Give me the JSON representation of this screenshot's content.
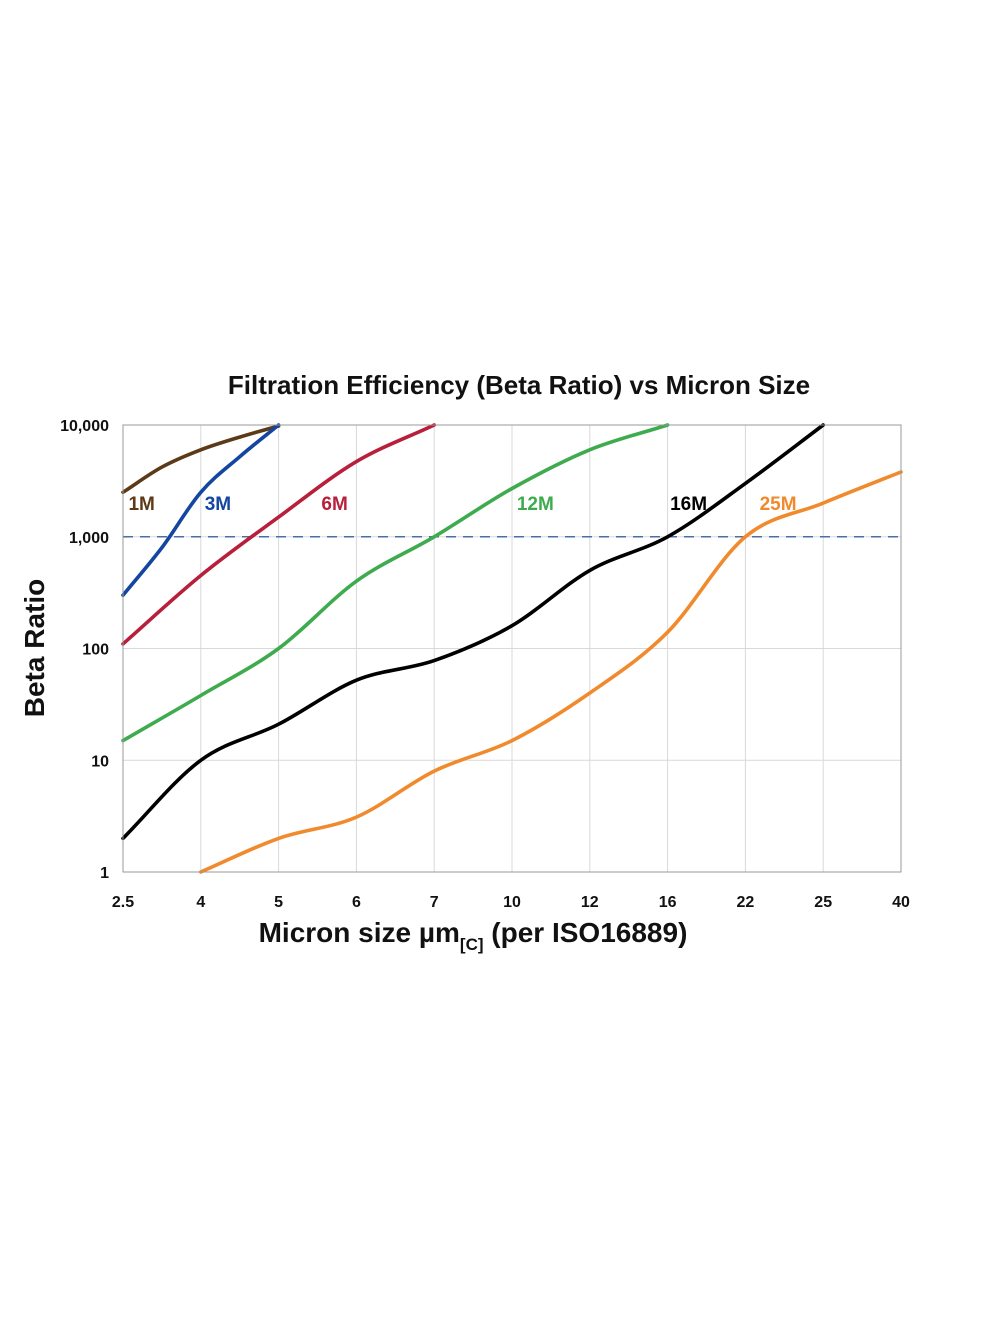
{
  "chart_data": {
    "type": "line",
    "title": "Filtration Efficiency (Beta Ratio) vs Micron Size",
    "xlabel": {
      "main": "Micron size µm",
      "subscript": "[C]",
      "suffix": " (per ISO16889)"
    },
    "ylabel": "Beta Ratio",
    "x_scale": "categorical",
    "y_scale": "log",
    "ylim": [
      1,
      10000
    ],
    "x_ticks": [
      "2.5",
      "4",
      "5",
      "6",
      "7",
      "10",
      "12",
      "16",
      "22",
      "25",
      "40"
    ],
    "y_ticks": [
      {
        "value": 1,
        "label": "1"
      },
      {
        "value": 10,
        "label": "10"
      },
      {
        "value": 100,
        "label": "100"
      },
      {
        "value": 1000,
        "label": "1,000"
      },
      {
        "value": 10000,
        "label": "10,000"
      }
    ],
    "grid": true,
    "reference_line": {
      "value": 1000,
      "style": "dashed",
      "color": "#4a6fa5"
    },
    "series": [
      {
        "name": "1M",
        "color": "#5c3a17",
        "points": [
          [
            0,
            2500
          ],
          [
            0.5,
            4200
          ],
          [
            1,
            6000
          ],
          [
            1.5,
            7800
          ],
          [
            2,
            9800
          ]
        ]
      },
      {
        "name": "3M",
        "color": "#1446a0",
        "points": [
          [
            0,
            300
          ],
          [
            0.5,
            800
          ],
          [
            1,
            2500
          ],
          [
            1.5,
            5200
          ],
          [
            2,
            10000
          ]
        ]
      },
      {
        "name": "6M",
        "color": "#b81f3a",
        "points": [
          [
            0,
            110
          ],
          [
            1,
            450
          ],
          [
            2,
            1500
          ],
          [
            3,
            4700
          ],
          [
            4,
            10000
          ]
        ]
      },
      {
        "name": "12M",
        "color": "#3dab4e",
        "points": [
          [
            0,
            15
          ],
          [
            1,
            38
          ],
          [
            2,
            100
          ],
          [
            3,
            400
          ],
          [
            4,
            1000
          ],
          [
            5,
            2700
          ],
          [
            6,
            6000
          ],
          [
            7,
            10000
          ]
        ]
      },
      {
        "name": "16M",
        "color": "#000000",
        "points": [
          [
            0,
            2
          ],
          [
            1,
            10
          ],
          [
            2,
            21
          ],
          [
            3,
            52
          ],
          [
            4,
            78
          ],
          [
            5,
            160
          ],
          [
            6,
            500
          ],
          [
            7,
            1000
          ],
          [
            8,
            3000
          ],
          [
            9,
            10000
          ]
        ]
      },
      {
        "name": "25M",
        "color": "#f08a2c",
        "points": [
          [
            1,
            1
          ],
          [
            2,
            2
          ],
          [
            3,
            3.1
          ],
          [
            4,
            8
          ],
          [
            5,
            15
          ],
          [
            6,
            40
          ],
          [
            7,
            140
          ],
          [
            8,
            1000
          ],
          [
            9,
            2000
          ],
          [
            10,
            3800
          ]
        ]
      }
    ]
  }
}
